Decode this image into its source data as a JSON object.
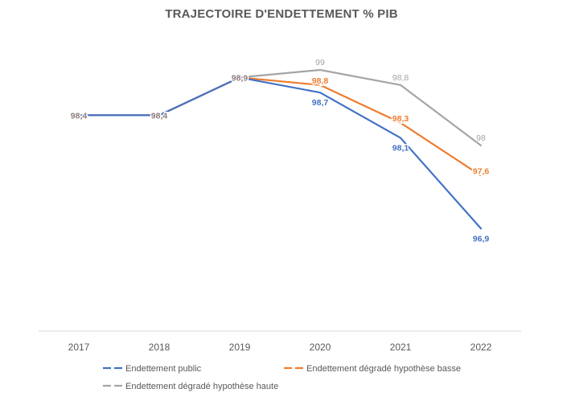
{
  "chart_data": {
    "type": "line",
    "title": "TRAJECTOIRE D'ENDETTEMENT % PIB",
    "categories": [
      "2017",
      "2018",
      "2019",
      "2020",
      "2021",
      "2022"
    ],
    "ylim": [
      96,
      100
    ],
    "grid": false,
    "legend_position": "bottom",
    "series": [
      {
        "name": "Endettement public",
        "color": "#4472C4",
        "values": [
          98.4,
          98.4,
          98.9,
          98.7,
          98.1,
          96.9
        ],
        "labels": [
          "98,4",
          "98,4",
          "98,9",
          "98,7",
          "98,1",
          "96,9"
        ]
      },
      {
        "name": "Endettement dégradé hypothèse basse",
        "color": "#ED7D31",
        "values": [
          98.4,
          98.4,
          98.9,
          98.8,
          98.3,
          97.6
        ],
        "labels": [
          "98,4",
          "98,4",
          "98,9",
          "98,8",
          "98,3",
          "97,6"
        ]
      },
      {
        "name": "Endettement dégradé hypothèse haute",
        "color": "#A5A5A5",
        "values": [
          98.4,
          98.4,
          98.9,
          99,
          98.8,
          98
        ],
        "labels": [
          "98,4",
          "98,4",
          "98,9",
          "99",
          "98,8",
          "98"
        ]
      }
    ]
  }
}
